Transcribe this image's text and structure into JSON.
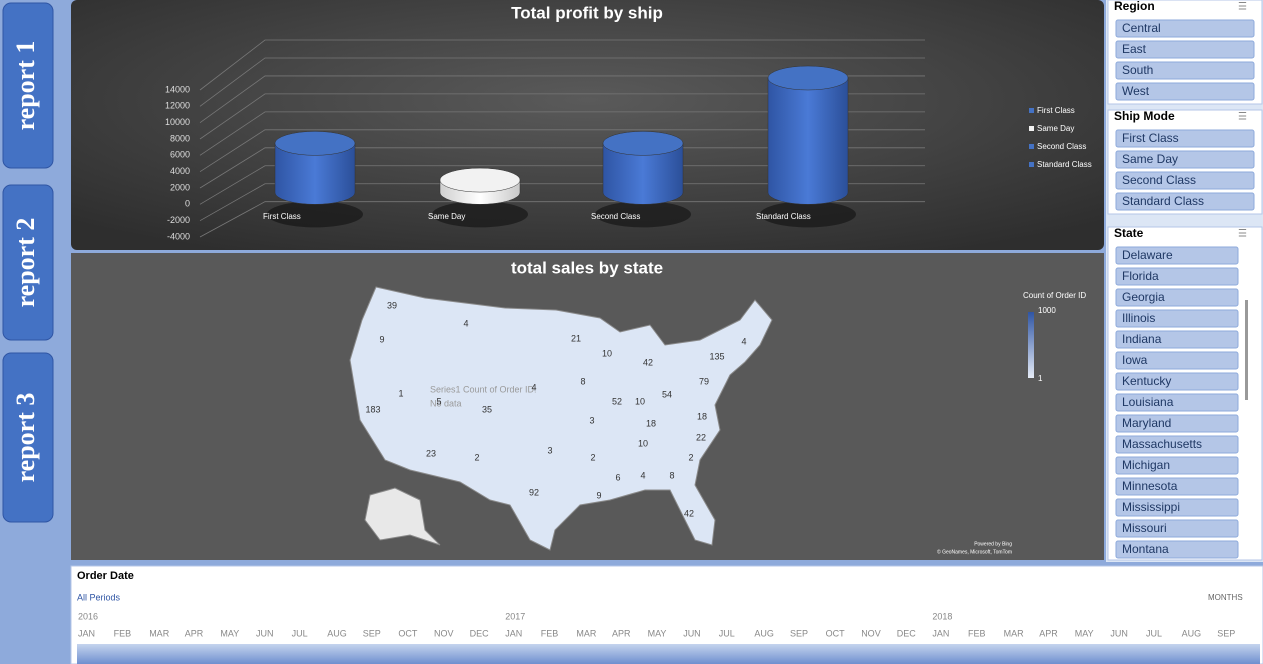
{
  "nav": [
    "report 1",
    "report 2",
    "report 3"
  ],
  "chart_data": {
    "type": "bar",
    "title": "Total profit by ship",
    "categories": [
      "First Class",
      "Same Day",
      "Second Class",
      "Standard Class"
    ],
    "values": [
      6000,
      1500,
      6000,
      14000
    ],
    "colors": [
      "#4472c4",
      "#f2f2f2",
      "#4472c4",
      "#4472c4"
    ],
    "ylim": [
      -4000,
      14000
    ],
    "yticks": [
      -4000,
      -2000,
      0,
      2000,
      4000,
      6000,
      8000,
      10000,
      12000,
      14000
    ],
    "grid": true,
    "legend": "right"
  },
  "map": {
    "title": "total sales by state",
    "legend_title": "Count of Order ID",
    "legend_ticks": [
      1000,
      1
    ],
    "values": [
      39,
      9,
      4,
      21,
      10,
      42,
      135,
      4,
      1,
      5,
      35,
      4,
      8,
      52,
      10,
      54,
      79,
      183,
      3,
      18,
      18,
      10,
      22,
      23,
      2,
      3,
      2,
      6,
      4,
      8,
      2,
      92,
      9,
      42
    ],
    "tooltip": "Series1  Count of Order ID:",
    "tooltip_value": "No data",
    "credits": [
      "Powered by Bing",
      "© GeoNames, Microsoft, TomTom"
    ]
  },
  "slicers": [
    {
      "title": "Region",
      "items": [
        "Central",
        "East",
        "South",
        "West"
      ]
    },
    {
      "title": "Ship Mode",
      "items": [
        "First Class",
        "Same Day",
        "Second Class",
        "Standard Class"
      ]
    },
    {
      "title": "State",
      "items": [
        "Delaware",
        "Florida",
        "Georgia",
        "Illinois",
        "Indiana",
        "Iowa",
        "Kentucky",
        "Louisiana",
        "Maryland",
        "Massachusetts",
        "Michigan",
        "Minnesota",
        "Mississippi",
        "Missouri",
        "Montana"
      ]
    }
  ],
  "timeline": {
    "title": "Order Date",
    "period": "All Periods",
    "unit": "MONTHS",
    "years": [
      "2016",
      "2017",
      "2018"
    ],
    "months": [
      "JAN",
      "FEB",
      "MAR",
      "APR",
      "MAY",
      "JUN",
      "JUL",
      "AUG",
      "SEP",
      "OCT",
      "NOV",
      "DEC"
    ]
  }
}
